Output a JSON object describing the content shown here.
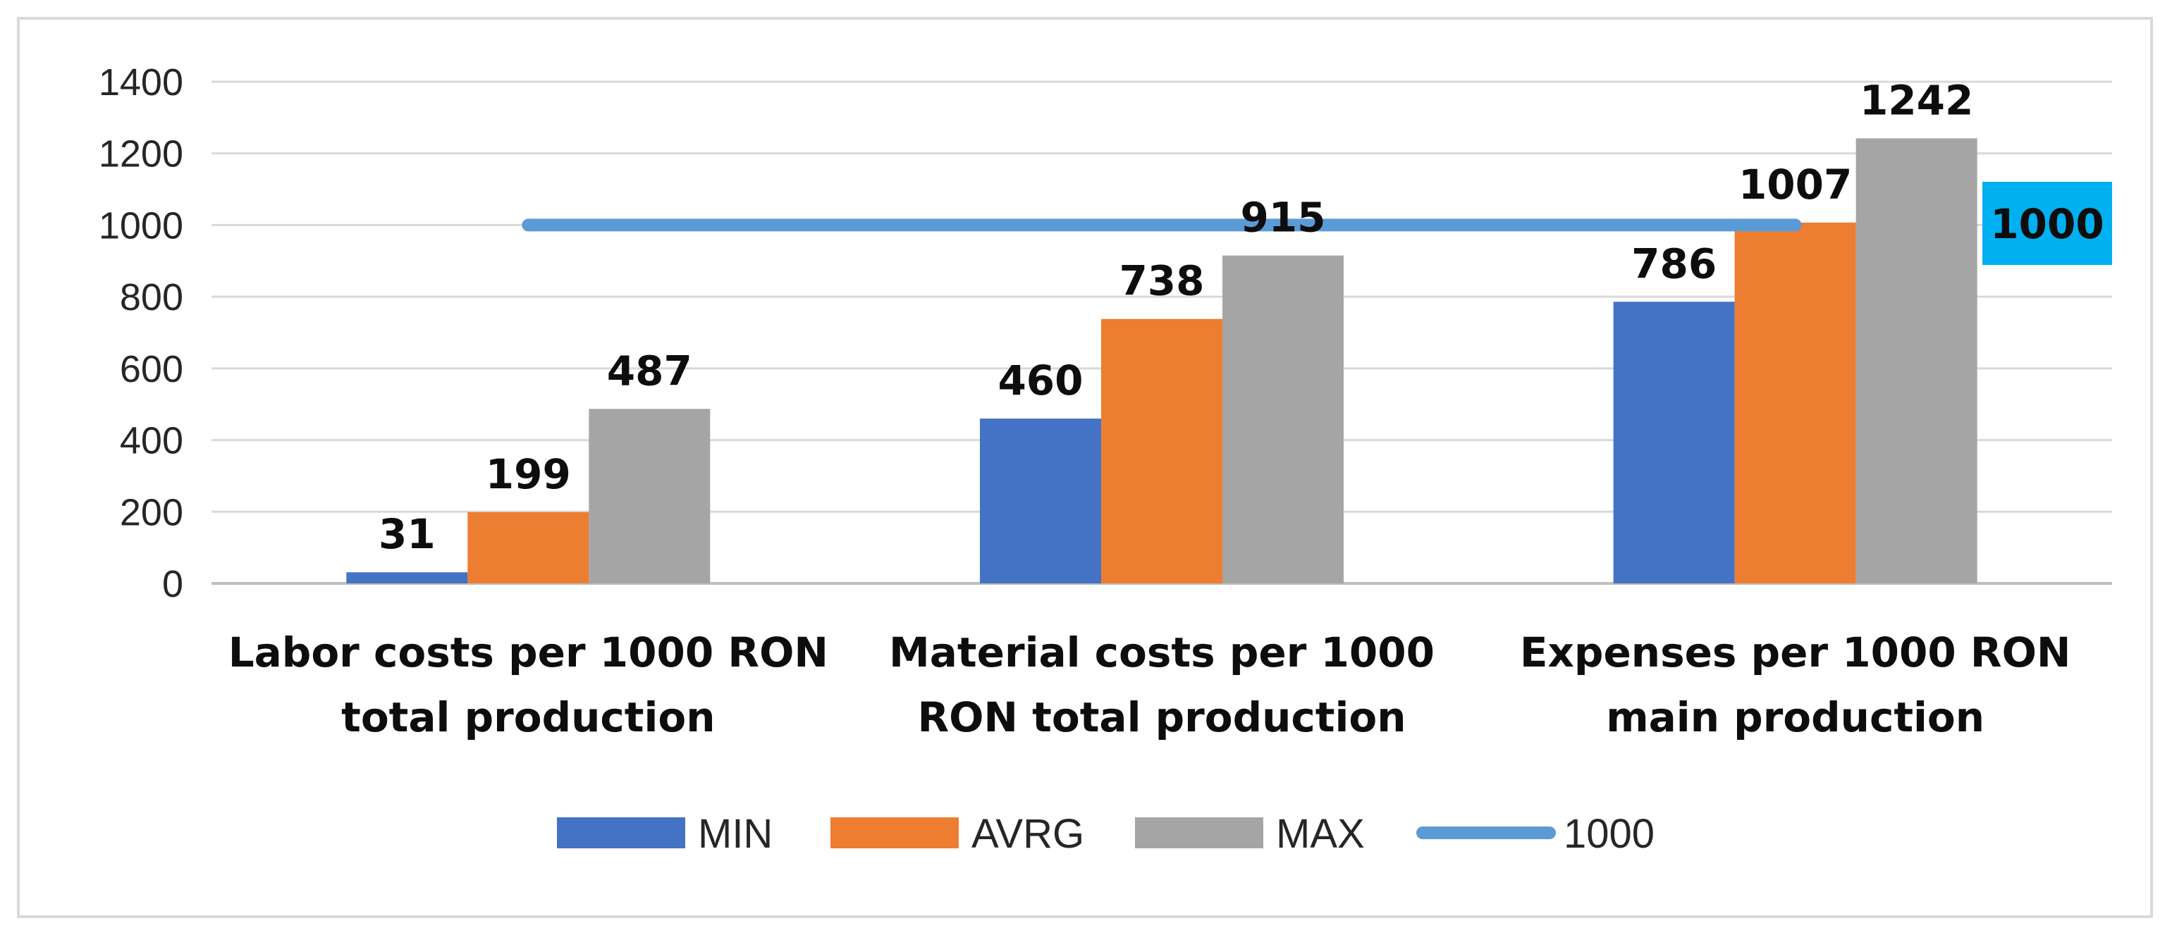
{
  "chart_data": {
    "type": "bar",
    "title": "",
    "xlabel": "",
    "ylabel": "",
    "ylim": [
      0,
      1400
    ],
    "yticks": [
      0,
      200,
      400,
      600,
      800,
      1000,
      1200,
      1400
    ],
    "grid": true,
    "categories": [
      [
        "Labor costs per 1000 RON",
        "total production"
      ],
      [
        "Material costs per 1000",
        "RON total production"
      ],
      [
        "Expenses per 1000 RON",
        "main production"
      ]
    ],
    "series": [
      {
        "name": "MIN",
        "color": "#4472c4",
        "values": [
          31,
          460,
          786
        ]
      },
      {
        "name": "AVRG",
        "color": "#ed7d31",
        "values": [
          199,
          738,
          1007
        ]
      },
      {
        "name": "MAX",
        "color": "#a5a5a5",
        "values": [
          487,
          915,
          1242
        ]
      }
    ],
    "reference_line": {
      "name": "1000",
      "value": 1000,
      "color": "#5b9bd5",
      "callout_label": "1000",
      "callout_color": "#00b0f0"
    },
    "legend_position": "bottom"
  }
}
